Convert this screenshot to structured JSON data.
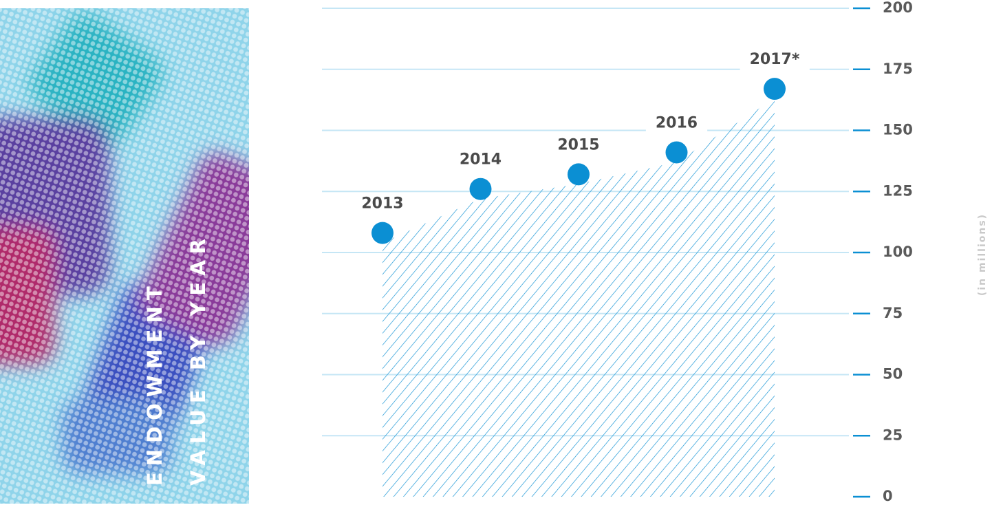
{
  "chart_data": {
    "type": "area",
    "title": [
      "ENDOWMENT",
      "VALUE BY YEAR"
    ],
    "y_label": "(in millions)",
    "categories": [
      "2013",
      "2014",
      "2015",
      "2016",
      "2017*"
    ],
    "values": [
      108,
      126,
      132,
      141,
      167
    ],
    "color": "#0b8fd3",
    "ylim": [
      0,
      200
    ],
    "yticks": [
      0,
      25,
      50,
      75,
      100,
      125,
      150,
      175,
      200
    ],
    "grid": true
  }
}
